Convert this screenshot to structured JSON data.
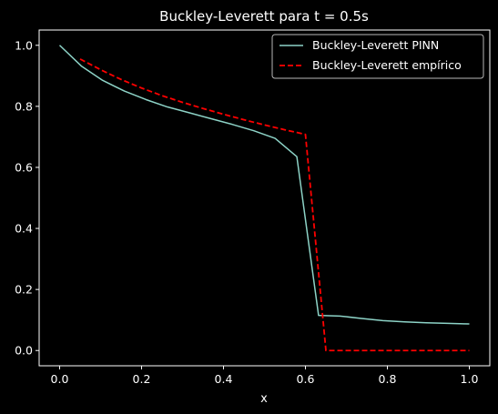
{
  "chart_data": {
    "type": "line",
    "title": "Buckley-Leverett para t = 0.5s",
    "xlabel": "x",
    "ylabel": "",
    "xlim": [
      -0.05,
      1.05
    ],
    "ylim": [
      -0.05,
      1.05
    ],
    "xticks": [
      0.0,
      0.2,
      0.4,
      0.6,
      0.8,
      1.0
    ],
    "xtick_labels": [
      "0.0",
      "0.2",
      "0.4",
      "0.6",
      "0.8",
      "1.0"
    ],
    "yticks": [
      0.0,
      0.2,
      0.4,
      0.6,
      0.8,
      1.0
    ],
    "ytick_labels": [
      "0.0",
      "0.2",
      "0.4",
      "0.6",
      "0.8",
      "1.0"
    ],
    "grid": false,
    "legend_position": "top-right",
    "background": "#000000",
    "series": [
      {
        "name": "Buckley-Leverett PINN",
        "color": "#8dd3c7",
        "style": "solid",
        "x": [
          0.0,
          0.053,
          0.105,
          0.158,
          0.211,
          0.263,
          0.316,
          0.368,
          0.421,
          0.474,
          0.526,
          0.579,
          0.632,
          0.684,
          0.737,
          0.789,
          0.842,
          0.895,
          0.947,
          1.0
        ],
        "y": [
          1.0,
          0.932,
          0.885,
          0.85,
          0.822,
          0.798,
          0.779,
          0.76,
          0.741,
          0.72,
          0.695,
          0.635,
          0.115,
          0.113,
          0.105,
          0.098,
          0.094,
          0.091,
          0.089,
          0.087
        ]
      },
      {
        "name": "Buckley-Leverett empírico",
        "color": "#ff0000",
        "style": "dashed",
        "x": [
          0.05,
          0.1,
          0.15,
          0.2,
          0.25,
          0.3,
          0.35,
          0.4,
          0.45,
          0.5,
          0.55,
          0.6,
          0.65,
          0.7,
          0.75,
          0.8,
          0.85,
          0.9,
          0.95,
          1.0
        ],
        "y": [
          0.955,
          0.92,
          0.888,
          0.86,
          0.835,
          0.813,
          0.793,
          0.774,
          0.756,
          0.739,
          0.723,
          0.708,
          0.0,
          0.0,
          0.0,
          0.0,
          0.0,
          0.0,
          0.0,
          0.0
        ]
      }
    ]
  }
}
